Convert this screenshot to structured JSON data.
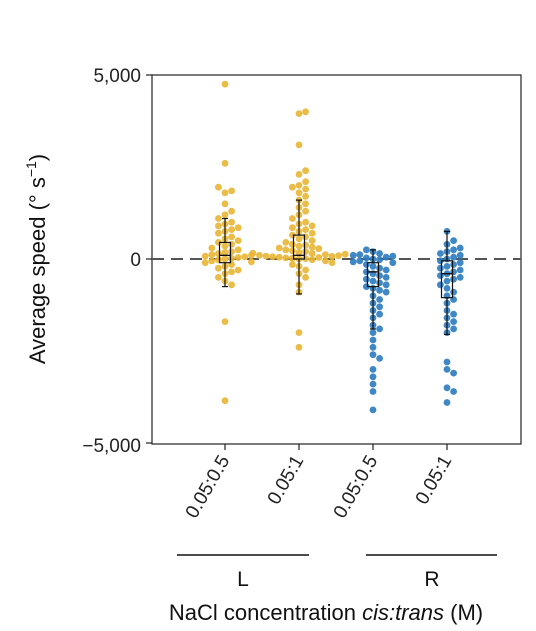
{
  "chart_data": {
    "type": "scatter",
    "subtype": "beeswarm-with-boxplot",
    "ylabel": "Average speed (° s",
    "ylabel_superscript": "−1",
    "ylabel_close": ")",
    "xlabel_prefix": "NaCl concentration ",
    "xlabel_italic": "cis:trans",
    "xlabel_suffix": " (M)",
    "ylim": [
      -5000,
      5000
    ],
    "yticks": [
      5000,
      0,
      -5000
    ],
    "ytick_labels": [
      "5,000",
      "0",
      "−5,000"
    ],
    "reference_line": 0,
    "groups": [
      {
        "label": "L",
        "categories": [
          0,
          1
        ]
      },
      {
        "label": "R",
        "categories": [
          2,
          3
        ]
      }
    ],
    "categories": [
      "0.05:0.5",
      "0.05:1",
      "0.05:0.5",
      "0.05:1"
    ],
    "colors": [
      "#e8b534",
      "#e8b534",
      "#2a7abf",
      "#2a7abf"
    ],
    "series": [
      {
        "values": [
          4750,
          2600,
          1950,
          1850,
          1800,
          1500,
          1300,
          1200,
          1100,
          1000,
          950,
          900,
          850,
          800,
          750,
          700,
          600,
          550,
          500,
          450,
          400,
          350,
          300,
          250,
          200,
          180,
          150,
          120,
          100,
          80,
          60,
          40,
          20,
          0,
          -20,
          -50,
          -80,
          -100,
          -150,
          -200,
          -250,
          -300,
          -350,
          -400,
          -500,
          -600,
          -700,
          -1700,
          -3850
        ],
        "box": {
          "q1": -100,
          "median": 100,
          "q3": 450,
          "whisker_low": -750,
          "whisker_high": 1100
        }
      },
      {
        "values": [
          4000,
          3950,
          3100,
          2400,
          2300,
          2100,
          2000,
          1950,
          1900,
          1800,
          1700,
          1600,
          1500,
          1400,
          1300,
          1200,
          1100,
          1000,
          950,
          900,
          850,
          800,
          750,
          700,
          650,
          600,
          550,
          500,
          450,
          400,
          380,
          350,
          320,
          300,
          280,
          250,
          220,
          200,
          180,
          160,
          150,
          130,
          120,
          100,
          90,
          80,
          70,
          60,
          50,
          40,
          30,
          20,
          10,
          0,
          -20,
          -50,
          -100,
          -150,
          -200,
          -300,
          -400,
          -500,
          -700,
          -900,
          -2000,
          -2400
        ],
        "box": {
          "q1": 0,
          "median": 100,
          "q3": 650,
          "whisker_low": -950,
          "whisker_high": 1600
        }
      },
      {
        "values": [
          250,
          200,
          150,
          120,
          100,
          80,
          50,
          30,
          0,
          -20,
          -50,
          -80,
          -100,
          -150,
          -200,
          -250,
          -300,
          -350,
          -400,
          -450,
          -500,
          -550,
          -600,
          -650,
          -700,
          -750,
          -800,
          -850,
          -900,
          -1000,
          -1100,
          -1200,
          -1300,
          -1400,
          -1500,
          -1600,
          -1800,
          -1900,
          -2000,
          -2200,
          -2400,
          -2600,
          -2700,
          -3000,
          -3200,
          -3400,
          -3600,
          -4100
        ],
        "box": {
          "q1": -750,
          "median": -350,
          "q3": -100,
          "whisker_low": -1900,
          "whisker_high": 250
        }
      },
      {
        "values": [
          750,
          500,
          400,
          300,
          250,
          200,
          150,
          100,
          50,
          0,
          -50,
          -100,
          -150,
          -200,
          -250,
          -300,
          -350,
          -400,
          -450,
          -500,
          -550,
          -600,
          -700,
          -800,
          -900,
          -1000,
          -1100,
          -1200,
          -1400,
          -1500,
          -1600,
          -1700,
          -1800,
          -1900,
          -2000,
          -2800,
          -3000,
          -3100,
          -3500,
          -3600,
          -3900
        ],
        "box": {
          "q1": -1050,
          "median": -400,
          "q3": -50,
          "whisker_low": -2050,
          "whisker_high": 750
        }
      }
    ]
  }
}
